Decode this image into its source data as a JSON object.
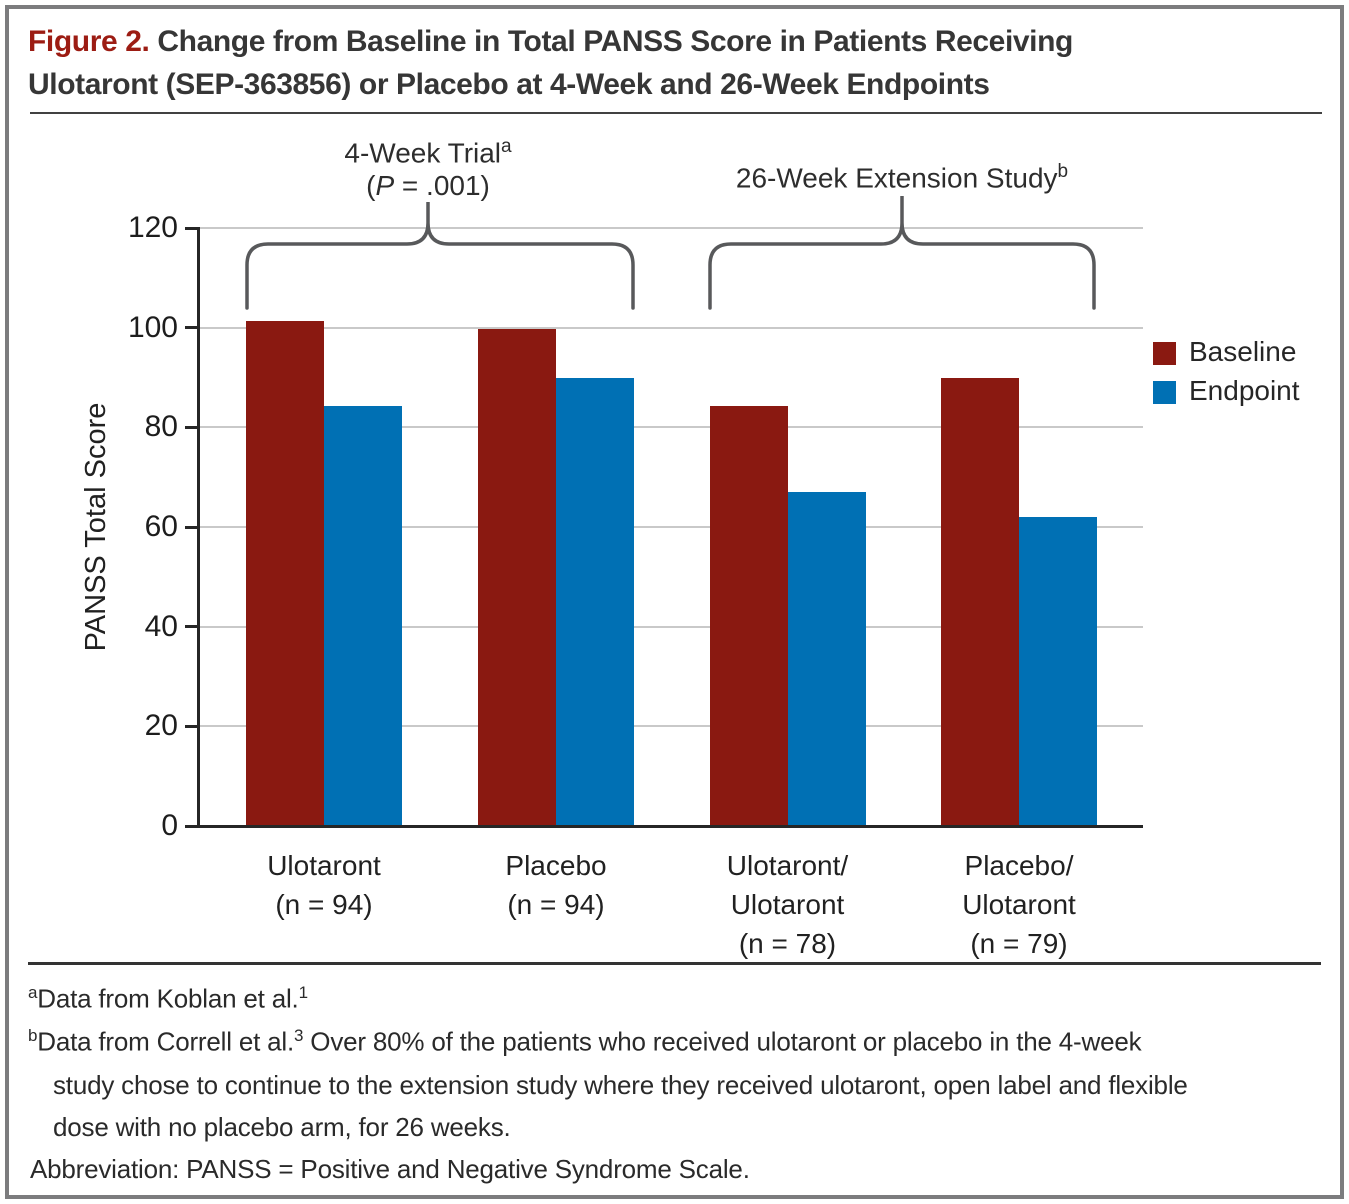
{
  "figure": {
    "label": "Figure 2.",
    "title_line1": "Change from Baseline in Total PANSS Score in Patients Receiving",
    "title_line2": "Ulotaront (SEP-363856) or Placebo at 4-Week and 26-Week Endpoints"
  },
  "chart_data": {
    "type": "bar",
    "ylabel": "PANSS Total Score",
    "xlabel": "",
    "ylim": [
      0,
      120
    ],
    "yticks": [
      0,
      20,
      40,
      60,
      80,
      100,
      120
    ],
    "grid": true,
    "legend_position": "right",
    "legend": [
      {
        "label": "Baseline",
        "color": "#8a1911"
      },
      {
        "label": "Endpoint",
        "color": "#0070b4"
      }
    ],
    "categories": [
      "Ulotaront (n = 94)",
      "Placebo (n = 94)",
      "Ulotaront/Ulotaront (n = 78)",
      "Placebo/Ulotaront (n = 79)"
    ],
    "series": [
      {
        "name": "Baseline",
        "values": [
          101.4,
          99.7,
          84.2,
          90.0
        ]
      },
      {
        "name": "Endpoint",
        "values": [
          84.2,
          90.0,
          67.0,
          62.0
        ]
      }
    ],
    "group_label_lines": [
      [
        "Ulotaront",
        "(n = 94)"
      ],
      [
        "Placebo",
        "(n = 94)"
      ],
      [
        "Ulotaront/",
        "Ulotaront",
        "(n = 78)"
      ],
      [
        "Placebo/",
        "Ulotaront",
        "(n = 79)"
      ]
    ],
    "annotations": [
      {
        "line1": {
          "text": "4-Week Trial",
          "sup": "a"
        },
        "line2_pre": "(",
        "line2_italic": "P",
        "line2_post": " = .001)",
        "spans_groups": [
          0,
          1
        ]
      },
      {
        "line1": {
          "text": "26-Week Extension Study",
          "sup": "b"
        },
        "spans_groups": [
          2,
          3
        ]
      }
    ]
  },
  "footnotes": {
    "a": {
      "marker": "a",
      "text": "Data from Koblan et al.",
      "ref": "1"
    },
    "b": {
      "marker": "b",
      "line1_text": "Data from Correll et al.",
      "ref": "3",
      "line1_rest": " Over 80% of the patients who received ulotaront or placebo in the 4-week",
      "line2": "study chose to continue to the extension study where they received ulotaront, open label and flexible",
      "line3": "dose with no placebo arm, for 26 weeks."
    },
    "abbreviation": "Abbreviation: PANSS = Positive and Negative Syndrome Scale."
  },
  "colors": {
    "baseline_bar": "#8a1911",
    "endpoint_bar": "#0070b4",
    "figure_label_red": "#9c1c13",
    "gridline": "#c9c9c9",
    "axis": "#262626",
    "brace": "#58595b",
    "border": "#7c7c7e"
  }
}
